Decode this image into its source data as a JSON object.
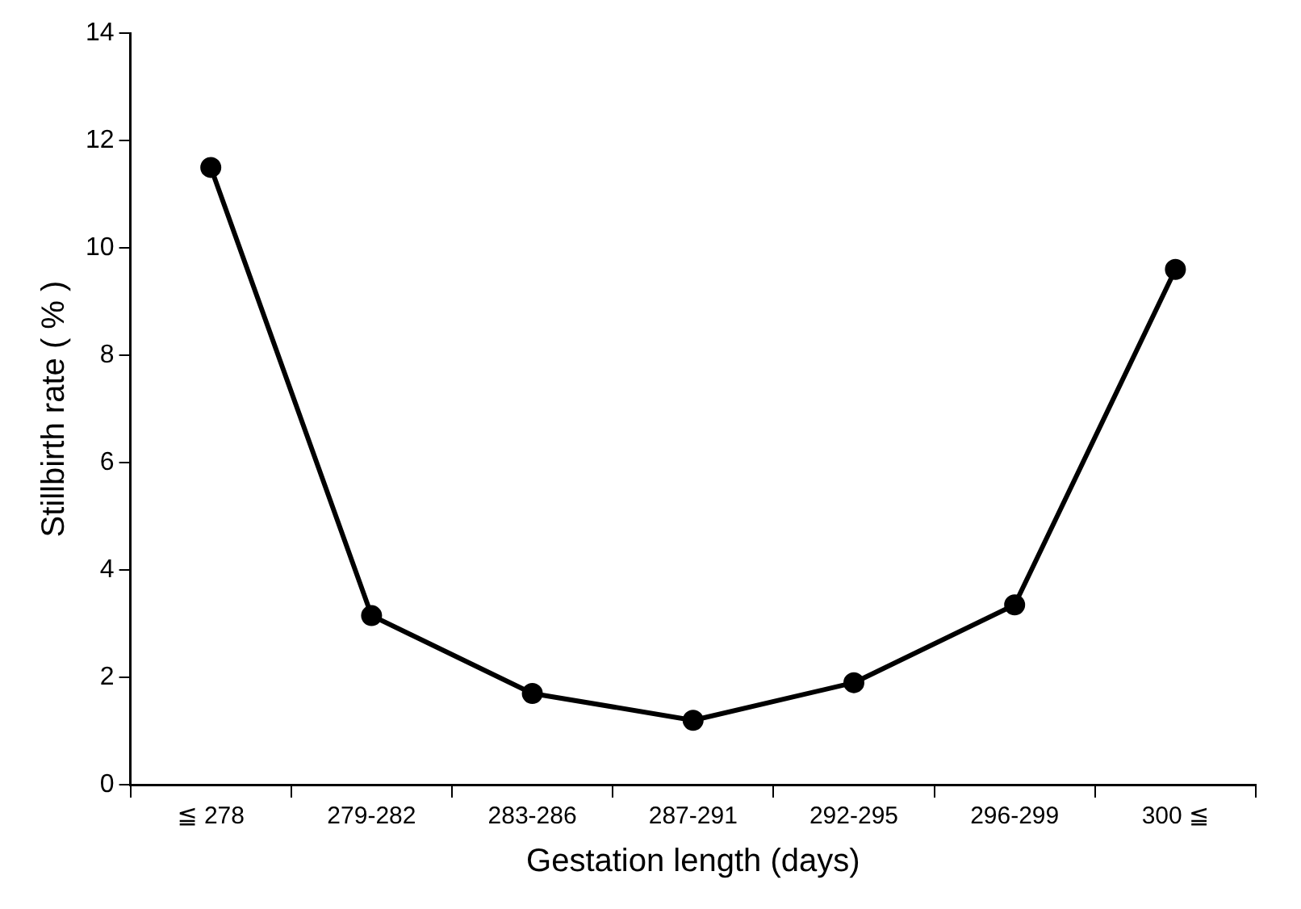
{
  "chart_data": {
    "type": "line",
    "xlabel": "Gestation length (days)",
    "ylabel": "Stillbirth rate ( % )",
    "categories": [
      "≦ 278",
      "279-282",
      "283-286",
      "287-291",
      "292-295",
      "296-299",
      "300 ≦"
    ],
    "series": [
      {
        "color": "#000000",
        "values": [
          11.5,
          3.15,
          1.7,
          1.2,
          1.9,
          3.35,
          9.6
        ]
      }
    ],
    "ylim": [
      0,
      14
    ],
    "yticks": [
      0,
      2,
      4,
      6,
      8,
      10,
      12,
      14
    ],
    "grid": false,
    "legend": false,
    "marker": "circle",
    "line_style": "solid"
  }
}
